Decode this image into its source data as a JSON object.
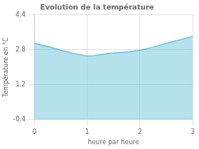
{
  "chart_data": {
    "type": "area",
    "title": "Evolution de la température",
    "xlabel": "heure par heure",
    "ylabel": "Température en °C",
    "x": [
      0,
      0.25,
      0.5,
      0.75,
      1.0,
      1.1,
      1.25,
      1.5,
      1.75,
      2.0,
      2.25,
      2.5,
      2.75,
      3.0
    ],
    "values": [
      3.1,
      2.95,
      2.78,
      2.63,
      2.52,
      2.52,
      2.58,
      2.65,
      2.7,
      2.78,
      2.92,
      3.1,
      3.25,
      3.42
    ],
    "color": "#5bbfd4",
    "xlim": [
      0,
      3
    ],
    "ylim": [
      -0.4,
      4.4
    ],
    "xticks": [
      0,
      1,
      2,
      3
    ],
    "yticks": [
      -0.4,
      1.2,
      2.8,
      4.4
    ],
    "grid": true
  }
}
